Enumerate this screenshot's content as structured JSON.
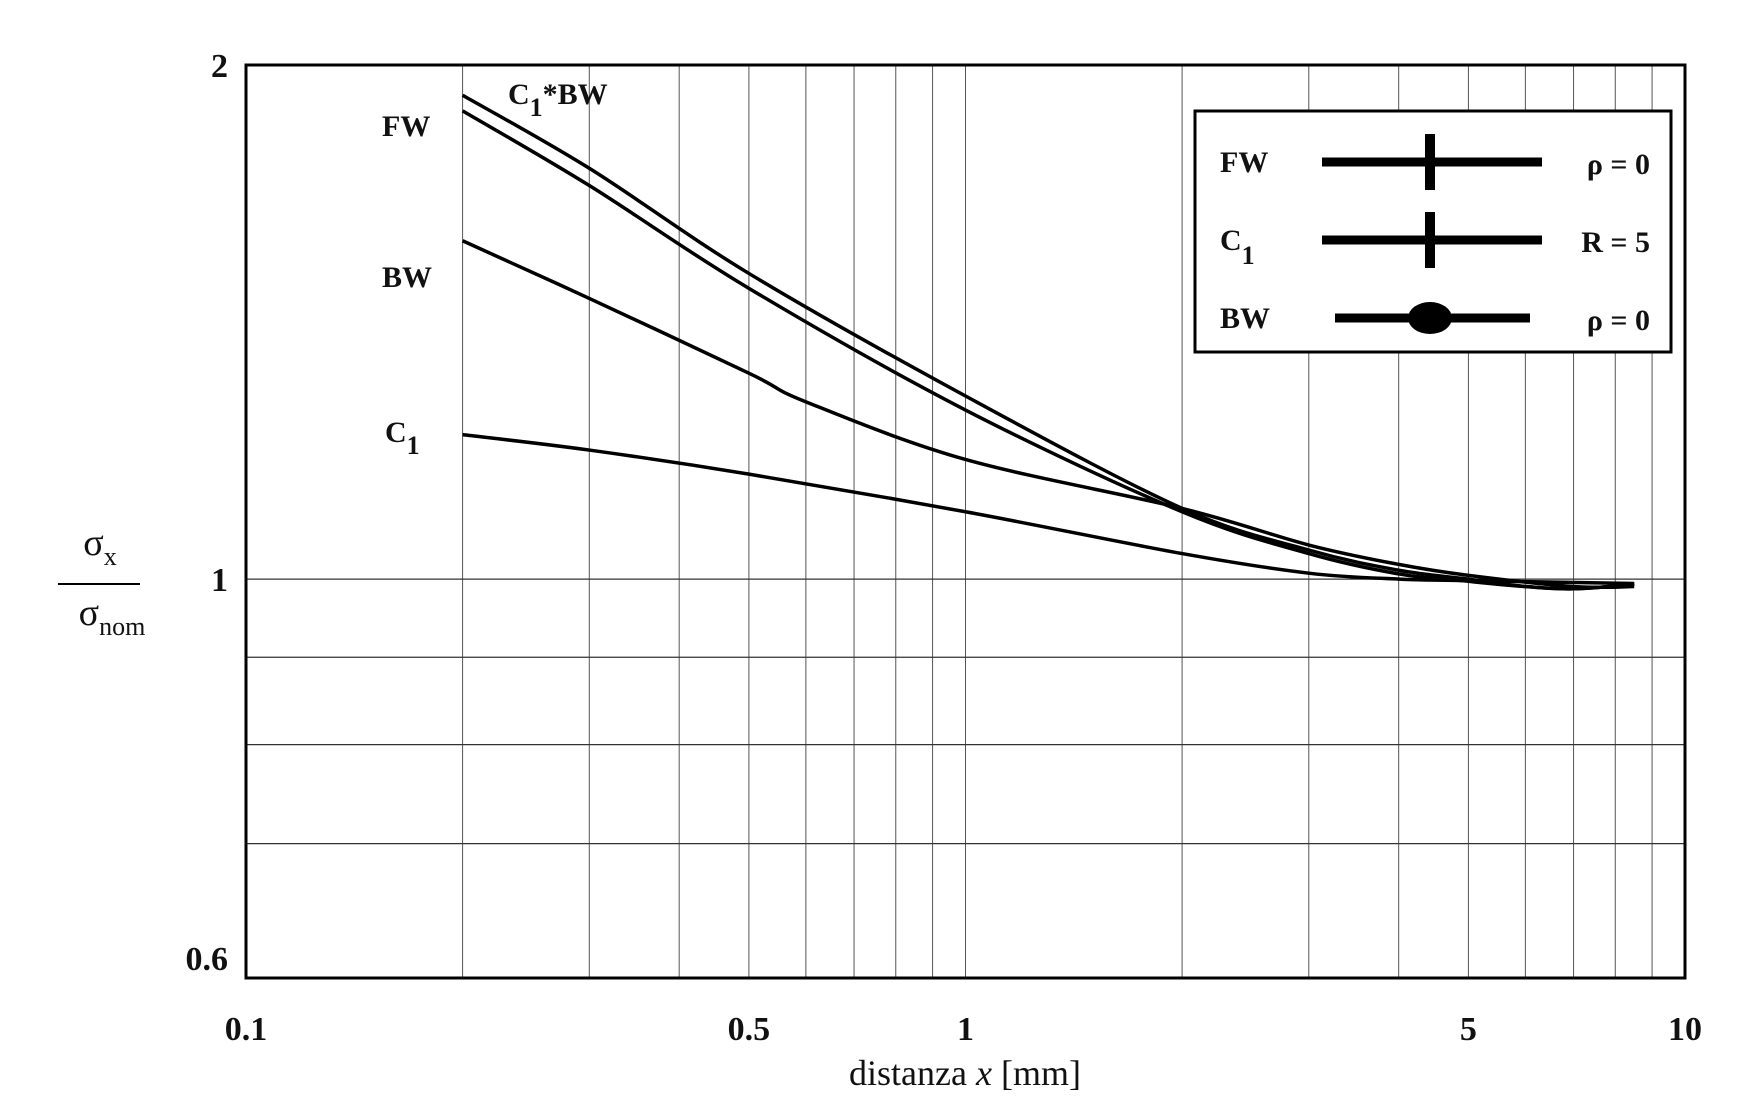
{
  "chart_data": {
    "type": "line",
    "xscale": "log",
    "yscale": "log",
    "xlim": [
      0.1,
      10
    ],
    "ylim": [
      0.584,
      2
    ],
    "xlabel_main": "distanza ",
    "xlabel_var": "x",
    "xlabel_unit": " [mm]",
    "ylabel_num": "σ",
    "ylabel_num_sub": "x",
    "ylabel_den": "σ",
    "ylabel_den_sub": "nom",
    "xticks": [
      0.1,
      0.5,
      1,
      5,
      10
    ],
    "xtick_labels": [
      "0.1",
      "0.5",
      "1",
      "5",
      "10"
    ],
    "yticks": [
      2,
      1,
      0.6
    ],
    "ytick_labels": [
      "2",
      "1",
      "0.6"
    ],
    "xgrid": [
      0.2,
      0.3,
      0.4,
      0.5,
      0.6,
      0.7,
      0.8,
      0.9,
      1,
      2,
      3,
      4,
      5,
      6,
      7,
      8,
      9
    ],
    "ygrid": [
      1,
      0.9,
      0.8,
      0.7
    ],
    "grid": true,
    "series": [
      {
        "name": "C1*BW",
        "label_main": "C",
        "label_sub": "1",
        "label_rest": "*BW",
        "x": [
          0.2,
          0.3,
          0.5,
          1,
          2,
          3,
          4,
          5,
          6,
          7,
          8.5
        ],
        "y": [
          1.92,
          1.74,
          1.51,
          1.28,
          1.1,
          1.04,
          1.012,
          1.0,
          0.99,
          0.987,
          0.993
        ]
      },
      {
        "name": "FW",
        "label_main": "FW",
        "label_sub": "",
        "label_rest": "",
        "x": [
          0.2,
          0.3,
          0.5,
          1,
          2,
          3,
          4,
          5,
          6,
          7,
          8.5
        ],
        "y": [
          1.88,
          1.7,
          1.48,
          1.256,
          1.095,
          1.035,
          1.007,
          0.997,
          0.99,
          0.987,
          0.993
        ]
      },
      {
        "name": "BW",
        "label_main": "BW",
        "label_sub": "",
        "label_rest": "",
        "x": [
          0.2,
          0.3,
          0.5,
          0.6,
          1,
          2,
          3,
          4,
          5,
          7,
          8.5
        ],
        "y": [
          1.578,
          1.46,
          1.32,
          1.27,
          1.175,
          1.1,
          1.047,
          1.02,
          1.005,
          0.99,
          0.99
        ]
      },
      {
        "name": "C1",
        "label_main": "C",
        "label_sub": "1",
        "label_rest": "",
        "x": [
          0.2,
          0.3,
          0.5,
          1,
          2,
          3,
          4,
          5,
          8.5
        ],
        "y": [
          1.215,
          1.19,
          1.152,
          1.095,
          1.035,
          1.008,
          1.0,
          0.998,
          0.994
        ]
      }
    ],
    "legend": {
      "placement": "top-right",
      "entries": [
        {
          "name": "FW",
          "main": "FW",
          "sub": "",
          "marker": "cross",
          "param": "ρ = 0"
        },
        {
          "name": "C1",
          "main": "C",
          "sub": "1",
          "marker": "cross",
          "param": "R = 5"
        },
        {
          "name": "BW",
          "main": "BW",
          "sub": "",
          "marker": "dot",
          "param": "ρ = 0"
        }
      ]
    }
  }
}
